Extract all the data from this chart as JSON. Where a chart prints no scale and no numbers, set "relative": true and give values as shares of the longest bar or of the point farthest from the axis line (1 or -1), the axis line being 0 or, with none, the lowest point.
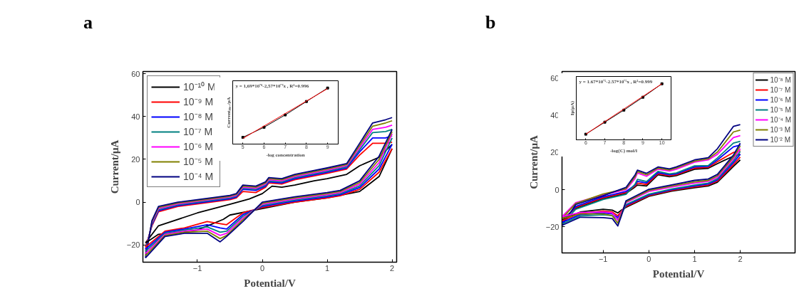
{
  "chart_data": [
    {
      "type": "line",
      "title": "a",
      "xlabel": "Potential/V",
      "ylabel": "Current/μA",
      "xlim": [
        -1.84,
        2.07
      ],
      "ylim": [
        -28,
        61
      ],
      "xticks": [
        -1,
        0,
        1,
        2
      ],
      "yticks": [
        -20,
        0,
        20,
        40,
        60
      ],
      "legend": "top left",
      "series": [
        {
          "name": "10⁻¹⁰ M",
          "color": "#000000",
          "x": [
            -1.8,
            -1.6,
            -1.0,
            -0.5,
            -0.2,
            0,
            0.15,
            0.3,
            0.5,
            0.8,
            1.0,
            1.3,
            1.5,
            1.8,
            2.0
          ],
          "values": [
            -19,
            -11,
            -5,
            -1,
            1.5,
            4,
            7.5,
            7,
            8,
            10,
            11,
            13,
            17,
            21,
            27
          ]
        },
        {
          "name": "10⁻⁹ M",
          "color": "#ff0000",
          "x": [
            -1.8,
            -1.7,
            -1.6,
            -1.3,
            -1.0,
            -0.5,
            -0.4,
            -0.3,
            -0.1,
            0.05,
            0.1,
            0.3,
            0.5,
            1.0,
            1.3,
            1.5,
            1.7,
            1.9,
            2.0
          ],
          "values": [
            -21,
            -11,
            -4.5,
            -2,
            -0.8,
            1.2,
            2,
            5,
            4.5,
            7,
            9,
            8.5,
            10.5,
            13.5,
            15.5,
            22,
            27.5,
            27.5,
            28
          ]
        },
        {
          "name": "10⁻⁸ M",
          "color": "#0000ff",
          "x": [
            -1.8,
            -1.7,
            -1.6,
            -1.3,
            -1.0,
            -0.5,
            -0.4,
            -0.3,
            -0.1,
            0.05,
            0.1,
            0.3,
            0.5,
            1.0,
            1.3,
            1.5,
            1.7,
            1.9,
            2.0
          ],
          "values": [
            -22,
            -10.5,
            -4,
            -1.6,
            -0.4,
            1.6,
            2.4,
            6,
            5.5,
            7.5,
            9.5,
            9,
            11,
            14,
            16,
            23.5,
            30,
            30,
            31
          ]
        },
        {
          "name": "10⁻⁷ M",
          "color": "#008080",
          "x": [
            -1.8,
            -1.7,
            -1.6,
            -1.3,
            -1.0,
            -0.5,
            -0.4,
            -0.3,
            -0.1,
            0.05,
            0.1,
            0.3,
            0.5,
            1.0,
            1.3,
            1.5,
            1.7,
            1.9,
            2.0
          ],
          "values": [
            -23,
            -10,
            -3.5,
            -1.2,
            0,
            2,
            2.8,
            6.5,
            6,
            8,
            10,
            9.5,
            11.5,
            14.5,
            16.5,
            24.5,
            32.5,
            33,
            34
          ]
        },
        {
          "name": "10⁻⁶ M",
          "color": "#ff00ff",
          "x": [
            -1.8,
            -1.7,
            -1.6,
            -1.3,
            -1.0,
            -0.5,
            -0.4,
            -0.3,
            -0.1,
            0.05,
            0.1,
            0.3,
            0.5,
            1.0,
            1.3,
            1.5,
            1.7,
            1.9,
            2.0
          ],
          "values": [
            -24,
            -9.5,
            -3,
            -0.8,
            0.4,
            2.4,
            3.2,
            7,
            6.5,
            8.5,
            10.5,
            10,
            12,
            15,
            17,
            25.5,
            34,
            35,
            36
          ]
        },
        {
          "name": "10⁻⁵ M",
          "color": "#808000",
          "x": [
            -1.8,
            -1.7,
            -1.6,
            -1.3,
            -1.0,
            -0.5,
            -0.4,
            -0.3,
            -0.1,
            0.05,
            0.1,
            0.3,
            0.5,
            1.0,
            1.3,
            1.5,
            1.7,
            1.9,
            2.0
          ],
          "values": [
            -25,
            -9,
            -2.5,
            -0.4,
            0.8,
            2.8,
            3.6,
            7.5,
            7,
            9,
            11,
            10.5,
            12.5,
            15.5,
            17.5,
            26.5,
            35.5,
            37,
            38
          ]
        },
        {
          "name": "10⁻⁴ M",
          "color": "#000080",
          "x": [
            -1.8,
            -1.7,
            -1.6,
            -1.3,
            -1.0,
            -0.5,
            -0.4,
            -0.3,
            -0.1,
            0.05,
            0.1,
            0.3,
            0.5,
            1.0,
            1.3,
            1.5,
            1.7,
            1.9,
            2.0
          ],
          "values": [
            -26,
            -8.5,
            -2,
            0,
            1.2,
            3.2,
            4,
            8,
            7.5,
            9.5,
            11.5,
            11,
            13,
            16,
            18,
            27.5,
            37,
            38.5,
            39.5
          ]
        },
        {
          "color": "#000000",
          "x": [
            2.0,
            1.8,
            1.5,
            1.0,
            0.5,
            0,
            -0.5,
            -0.6,
            -1.0,
            -1.3,
            -1.6,
            -1.8
          ],
          "values": [
            25,
            12,
            5,
            2,
            0,
            -3,
            -6,
            -8,
            -13,
            -14,
            -15,
            -19
          ]
        },
        {
          "color": "#ff0000",
          "x": [
            2.0,
            1.8,
            1.5,
            1.2,
            1.0,
            0.5,
            0,
            -0.3,
            -0.55,
            -0.65,
            -0.85,
            -1.2,
            -1.5,
            -1.8
          ],
          "values": [
            25,
            14,
            6,
            3,
            2,
            0,
            -2.5,
            -5,
            -10.5,
            -10,
            -9,
            -12,
            -13.5,
            -21
          ]
        },
        {
          "color": "#0000ff",
          "x": [
            2.0,
            1.8,
            1.5,
            1.2,
            1.0,
            0.5,
            0,
            -0.3,
            -0.55,
            -0.65,
            -0.85,
            -1.2,
            -1.5,
            -1.8
          ],
          "values": [
            27,
            15.5,
            6.8,
            3.5,
            2.5,
            0.5,
            -2,
            -5.8,
            -12.5,
            -12,
            -10.5,
            -12.5,
            -14,
            -22
          ]
        },
        {
          "color": "#008080",
          "x": [
            2.0,
            1.8,
            1.5,
            1.2,
            1.0,
            0.5,
            0,
            -0.3,
            -0.55,
            -0.65,
            -0.85,
            -1.2,
            -1.5,
            -1.8
          ],
          "values": [
            30,
            17,
            7.6,
            4,
            3,
            1,
            -1.5,
            -6.6,
            -13.5,
            -14,
            -11.5,
            -13,
            -14.5,
            -23
          ]
        },
        {
          "color": "#ff00ff",
          "x": [
            2.0,
            1.8,
            1.5,
            1.2,
            1.0,
            0.5,
            0,
            -0.3,
            -0.55,
            -0.65,
            -0.85,
            -1.2,
            -1.5,
            -1.8
          ],
          "values": [
            32,
            18.5,
            8.4,
            4.5,
            3.5,
            1.5,
            -1,
            -7.4,
            -14.5,
            -15.5,
            -12.5,
            -13.5,
            -15,
            -24
          ]
        },
        {
          "color": "#808000",
          "x": [
            2.0,
            1.8,
            1.5,
            1.2,
            1.0,
            0.5,
            0,
            -0.3,
            -0.55,
            -0.65,
            -0.85,
            -1.2,
            -1.5,
            -1.8
          ],
          "values": [
            33,
            20,
            9.2,
            5,
            4,
            2,
            -0.5,
            -8.2,
            -15.5,
            -17,
            -13.5,
            -14,
            -15.5,
            -25
          ]
        },
        {
          "color": "#000080",
          "x": [
            2.0,
            1.8,
            1.5,
            1.2,
            1.0,
            0.5,
            0,
            -0.3,
            -0.55,
            -0.65,
            -0.85,
            -1.2,
            -1.5,
            -1.8
          ],
          "values": [
            34,
            21.5,
            10,
            5.5,
            4.5,
            2.5,
            0,
            -9,
            -16,
            -18.5,
            -14.5,
            -14.5,
            -16,
            -26
          ]
        }
      ]
    },
    {
      "type": "line",
      "relative": true,
      "xlabel": "-log concentration",
      "ylabel": "Currentₘₐₓ/μA",
      "xlim": [
        4.52,
        9.5
      ],
      "xticks": [
        5,
        6,
        7,
        8,
        9
      ],
      "annotations": [
        "y = 1,69*10⁻⁶-2,57*10⁻⁷x , R²=0.996"
      ],
      "series": [
        {
          "color": "#000000",
          "marker": "square",
          "x": [
            5,
            6,
            7,
            8,
            9
          ],
          "values": [
            0.12,
            0.3,
            0.52,
            0.76,
            1.0
          ]
        },
        {
          "color": "#ff0000",
          "x": [
            5,
            9
          ],
          "values": [
            0.1,
            0.99
          ]
        }
      ]
    },
    {
      "type": "line",
      "title": "b",
      "xlabel": "Potential/V",
      "ylabel": "Current/μA",
      "xlim": [
        -1.9,
        3.2
      ],
      "ylim": [
        -34,
        63.5
      ],
      "xticks": [
        -1,
        0,
        1,
        2
      ],
      "yticks": [
        -20,
        0,
        20,
        40,
        60
      ],
      "legend": "top right",
      "series": [
        {
          "name": "10⁻⁸ M",
          "color": "#000000",
          "x": [
            -1.9,
            -1.6,
            -1.0,
            -0.5,
            -0.3,
            -0.25,
            -0.05,
            0.2,
            0.45,
            0.6,
            1.0,
            1.3,
            1.5,
            1.85,
            2.0
          ],
          "values": [
            -16,
            -10,
            -4.8,
            -2,
            1.5,
            2.5,
            2,
            8,
            7,
            7.5,
            11,
            11.5,
            14,
            18,
            19
          ]
        },
        {
          "name": "10⁻⁷ M",
          "color": "#ff0000",
          "x": [
            -1.9,
            -1.6,
            -1.0,
            -0.5,
            -0.3,
            -0.25,
            -0.05,
            0.2,
            0.45,
            0.6,
            1.0,
            1.3,
            1.5,
            1.85,
            2.0
          ],
          "values": [
            -16.8,
            -9.5,
            -4.3,
            -1.5,
            2,
            3.5,
            2.8,
            8.6,
            7.5,
            8,
            11.6,
            12,
            15,
            20,
            21
          ]
        },
        {
          "name": "10⁻⁶ M",
          "color": "#0000ff",
          "x": [
            -1.9,
            -1.6,
            -1.0,
            -0.5,
            -0.3,
            -0.25,
            -0.05,
            0.2,
            0.45,
            0.6,
            1.0,
            1.3,
            1.5,
            1.85,
            2.0
          ],
          "values": [
            -17.6,
            -9,
            -3.8,
            -1,
            2.5,
            4.5,
            3.6,
            9.2,
            8,
            8.5,
            12.2,
            12.5,
            16,
            23,
            24
          ]
        },
        {
          "name": "10⁻⁵ M",
          "color": "#008080",
          "x": [
            -1.9,
            -1.6,
            -1.0,
            -0.5,
            -0.3,
            -0.25,
            -0.05,
            0.2,
            0.45,
            0.6,
            1.0,
            1.3,
            1.5,
            1.85,
            2.0
          ],
          "values": [
            -18.4,
            -10.5,
            -5.3,
            -2.5,
            3,
            5.5,
            4.4,
            9.8,
            8.5,
            9,
            12.8,
            13,
            17,
            25,
            26
          ]
        },
        {
          "name": "10⁻⁴ M",
          "color": "#ff00ff",
          "x": [
            -1.9,
            -1.6,
            -1.0,
            -0.5,
            -0.3,
            -0.25,
            -0.05,
            0.2,
            0.45,
            0.6,
            1.0,
            1.3,
            1.5,
            1.85,
            2.0
          ],
          "values": [
            -14.5,
            -7,
            -2.8,
            0,
            6,
            9,
            7.2,
            11,
            10,
            11,
            14.8,
            16,
            19,
            28,
            29
          ]
        },
        {
          "name": "10⁻³ M",
          "color": "#808000",
          "x": [
            -1.9,
            -1.6,
            -1.0,
            -0.5,
            -0.3,
            -0.25,
            -0.05,
            0.2,
            0.45,
            0.6,
            1.0,
            1.3,
            1.5,
            1.85,
            2.0
          ],
          "values": [
            -15.5,
            -7.5,
            -2.3,
            0.5,
            7,
            9.7,
            8,
            11.6,
            10.6,
            11.6,
            15.4,
            16.6,
            20.2,
            31,
            32
          ]
        },
        {
          "name": "10⁻² M",
          "color": "#000080",
          "x": [
            -1.9,
            -1.6,
            -1.0,
            -0.5,
            -0.3,
            -0.25,
            -0.05,
            0.2,
            0.45,
            0.6,
            1.0,
            1.3,
            1.5,
            1.85,
            2.0
          ],
          "values": [
            -19.2,
            -8,
            -3.3,
            1.2,
            8,
            10.5,
            8.8,
            12.2,
            11.2,
            12.2,
            16,
            17.2,
            22,
            34,
            35
          ]
        },
        {
          "color": "#000000",
          "x": [
            2.0,
            1.85,
            1.5,
            1.3,
            1.0,
            0.5,
            0,
            -0.5,
            -0.6,
            -0.68,
            -0.8,
            -1.0,
            -1.5,
            -1.9
          ],
          "values": [
            16,
            12.5,
            4,
            2,
            1,
            -0.8,
            -3.6,
            -9.5,
            -11,
            -12.5,
            -11,
            -10.5,
            -12,
            -16
          ]
        },
        {
          "color": "#ff0000",
          "x": [
            2.0,
            1.85,
            1.5,
            1.3,
            1.0,
            0.5,
            0,
            -0.5,
            -0.6,
            -0.68,
            -0.8,
            -1.0,
            -1.5,
            -1.9
          ],
          "values": [
            17.5,
            13.5,
            4.6,
            2.5,
            1.5,
            -0.4,
            -3.2,
            -9,
            -11.8,
            -14,
            -12,
            -11.5,
            -12.7,
            -16.8
          ]
        },
        {
          "color": "#0000ff",
          "x": [
            2.0,
            1.85,
            1.5,
            1.3,
            1.0,
            0.5,
            0,
            -0.5,
            -0.6,
            -0.68,
            -0.8,
            -1.0,
            -1.5,
            -1.9
          ],
          "values": [
            19,
            14.5,
            5.2,
            3,
            2,
            0,
            -2.8,
            -8.5,
            -12.6,
            -15,
            -13,
            -12.5,
            -13.4,
            -17.6
          ]
        },
        {
          "color": "#008080",
          "x": [
            2.0,
            1.85,
            1.5,
            1.3,
            1.0,
            0.5,
            0,
            -0.5,
            -0.6,
            -0.68,
            -0.8,
            -1.0,
            -1.5,
            -1.9
          ],
          "values": [
            20.5,
            15.5,
            5.8,
            3.5,
            2.5,
            0.4,
            -2.4,
            -8,
            -13.4,
            -16,
            -14,
            -13.5,
            -14.1,
            -18.4
          ]
        },
        {
          "color": "#ff00ff",
          "x": [
            2.0,
            1.85,
            1.5,
            1.3,
            1.0,
            0.5,
            0,
            -0.5,
            -0.6,
            -0.68,
            -0.8,
            -1.0,
            -1.5,
            -1.9
          ],
          "values": [
            22,
            16.5,
            6.6,
            4.5,
            3.5,
            1.4,
            -1,
            -7,
            -12.2,
            -16.5,
            -12.5,
            -12,
            -12.3,
            -14.5
          ]
        },
        {
          "color": "#808000",
          "x": [
            2.0,
            1.85,
            1.5,
            1.3,
            1.0,
            0.5,
            0,
            -0.5,
            -0.6,
            -0.68,
            -0.8,
            -1.0,
            -1.5,
            -1.9
          ],
          "values": [
            23.5,
            17.5,
            7.4,
            5,
            4.2,
            2,
            -0.4,
            -6.5,
            -13,
            -18,
            -14,
            -13,
            -13,
            -15.5
          ]
        },
        {
          "color": "#000080",
          "x": [
            2.0,
            1.85,
            1.5,
            1.3,
            1.0,
            0.5,
            0,
            -0.5,
            -0.6,
            -0.68,
            -0.8,
            -1.0,
            -1.5,
            -1.9
          ],
          "values": [
            25,
            18.5,
            8.2,
            5.7,
            5,
            2.6,
            0.2,
            -6,
            -14,
            -19.5,
            -15.5,
            -15,
            -14.8,
            -19.2
          ]
        }
      ]
    },
    {
      "type": "line",
      "relative": true,
      "xlabel": "-log(C) mol/l",
      "ylabel": "Ip(μA)",
      "xlim": [
        5.5,
        10.48
      ],
      "xticks": [
        6,
        7,
        8,
        9,
        10
      ],
      "annotations": [
        "y = 1.67*10⁻⁵-2.57*10⁻⁵x , R²=0.999"
      ],
      "series": [
        {
          "color": "#000000",
          "marker": "square",
          "x": [
            6,
            7,
            8,
            9,
            10
          ],
          "values": [
            0.1,
            0.315,
            0.53,
            0.76,
            1.0
          ]
        },
        {
          "color": "#ff0000",
          "x": [
            6,
            10
          ],
          "values": [
            0.1,
            1.0
          ]
        }
      ]
    }
  ]
}
